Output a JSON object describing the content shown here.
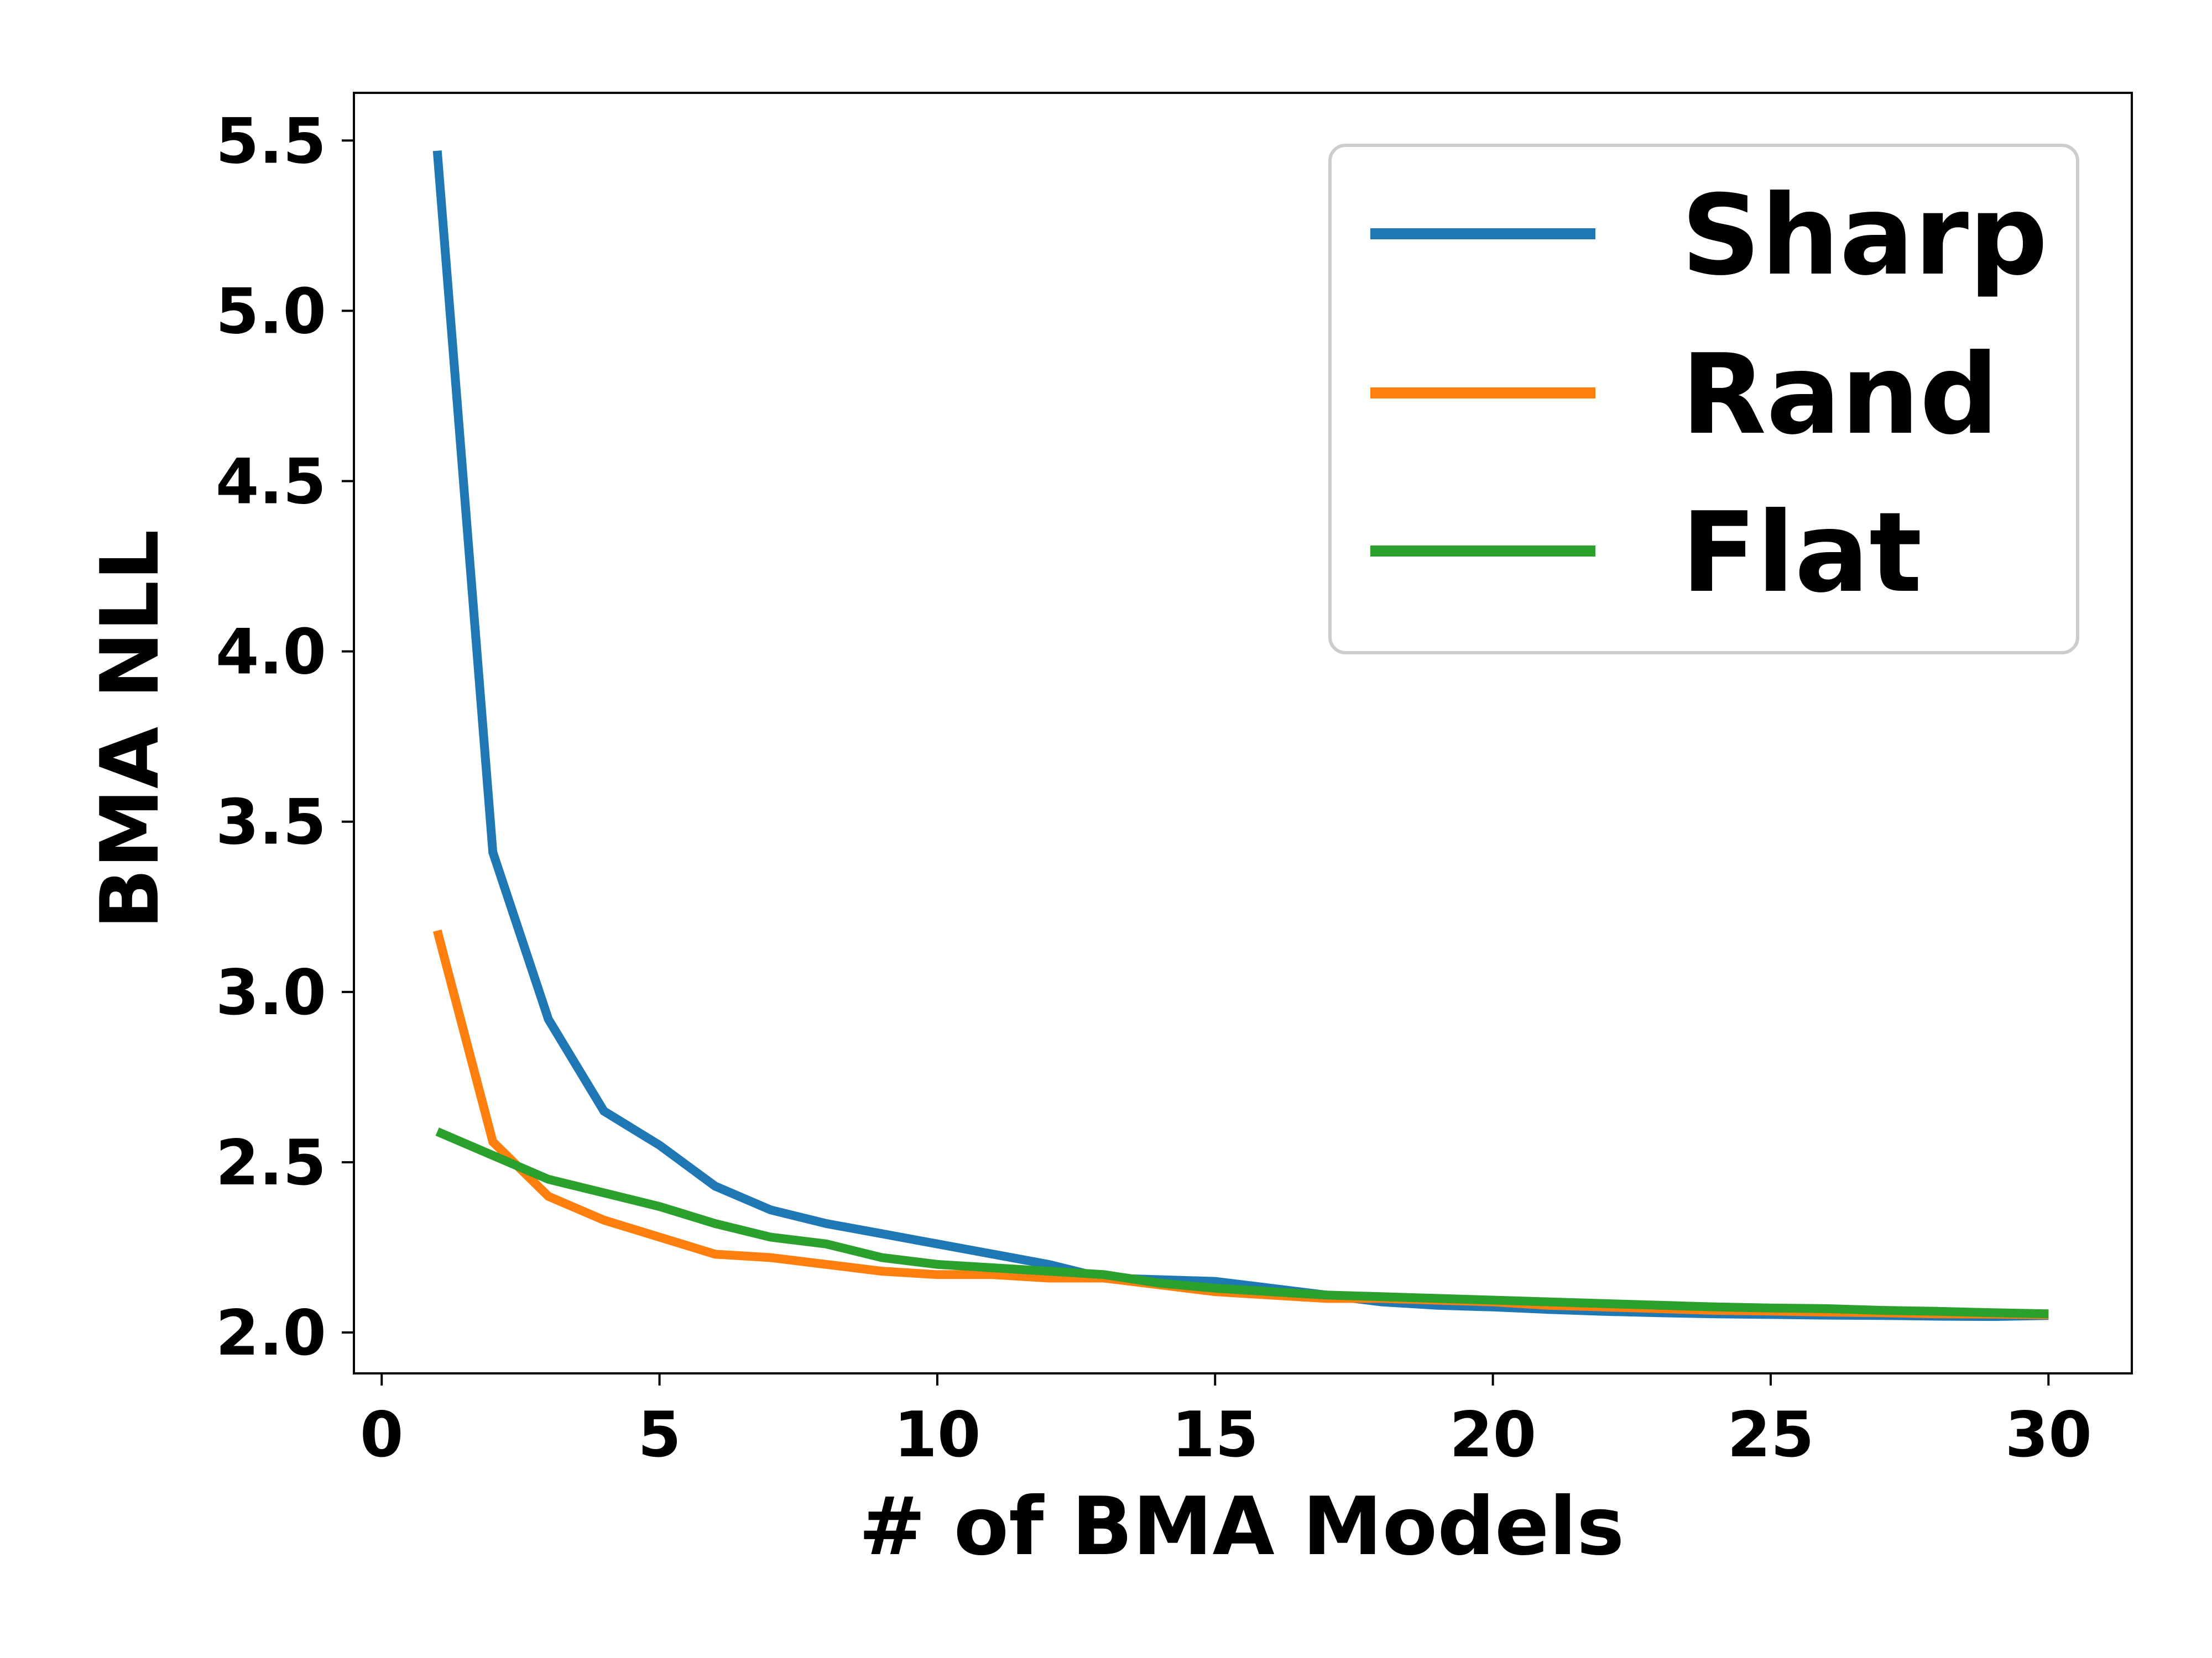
{
  "chart_data": {
    "type": "line",
    "xlabel": "# of BMA Models",
    "ylabel": "BMA NLL",
    "xlim": [
      -0.5,
      31.5
    ],
    "ylim": [
      1.88,
      5.64
    ],
    "xticks": [
      0,
      5,
      10,
      15,
      20,
      25,
      30
    ],
    "yticks": [
      2.0,
      2.5,
      3.0,
      3.5,
      4.0,
      4.5,
      5.0,
      5.5
    ],
    "xtick_labels": [
      "0",
      "5",
      "10",
      "15",
      "20",
      "25",
      "30"
    ],
    "ytick_labels": [
      "2.0",
      "2.5",
      "3.0",
      "3.5",
      "4.0",
      "4.5",
      "5.0",
      "5.5"
    ],
    "grid": false,
    "legend_position": "top-right",
    "x": [
      1,
      2,
      3,
      4,
      5,
      6,
      7,
      8,
      9,
      10,
      11,
      12,
      13,
      14,
      15,
      16,
      17,
      18,
      19,
      20,
      21,
      22,
      23,
      24,
      25,
      26,
      27,
      28,
      29,
      30
    ],
    "series": [
      {
        "name": "Sharp",
        "color": "#1f77b4",
        "values": [
          5.47,
          3.41,
          2.92,
          2.65,
          2.55,
          2.43,
          2.36,
          2.32,
          2.29,
          2.26,
          2.23,
          2.2,
          2.16,
          2.155,
          2.15,
          2.13,
          2.11,
          2.09,
          2.08,
          2.075,
          2.068,
          2.062,
          2.058,
          2.055,
          2.053,
          2.051,
          2.05,
          2.048,
          2.047,
          2.05
        ]
      },
      {
        "name": "Rand",
        "color": "#ff7f0e",
        "values": [
          3.18,
          2.56,
          2.4,
          2.33,
          2.28,
          2.23,
          2.22,
          2.2,
          2.18,
          2.17,
          2.17,
          2.16,
          2.16,
          2.14,
          2.12,
          2.11,
          2.1,
          2.1,
          2.095,
          2.09,
          2.08,
          2.075,
          2.07,
          2.065,
          2.063,
          2.06,
          2.058,
          2.055,
          2.054,
          2.052
        ]
      },
      {
        "name": "Flat",
        "color": "#2ca02c",
        "values": [
          2.59,
          2.52,
          2.45,
          2.41,
          2.37,
          2.32,
          2.28,
          2.26,
          2.22,
          2.2,
          2.19,
          2.18,
          2.17,
          2.145,
          2.13,
          2.12,
          2.11,
          2.105,
          2.1,
          2.095,
          2.09,
          2.085,
          2.08,
          2.075,
          2.072,
          2.07,
          2.065,
          2.062,
          2.058,
          2.055
        ]
      }
    ]
  }
}
